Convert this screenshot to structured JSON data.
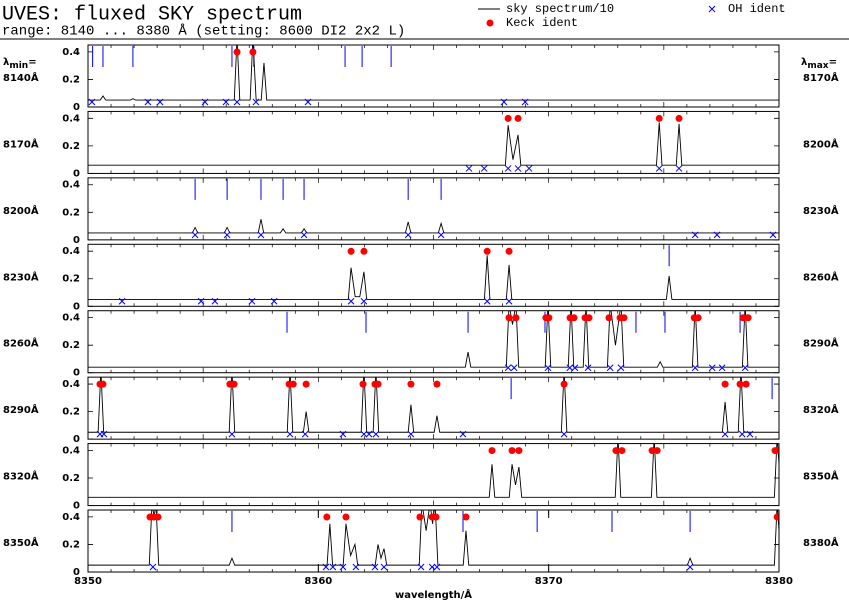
{
  "header": {
    "title": "UVES: fluxed SKY spectrum",
    "subtitle": "range: 8140 ... 8380 Å (setting: 8600 DI2 2x2 L)"
  },
  "legend": [
    {
      "name": "sky spectrum/10",
      "color": "#000000",
      "marker": "line"
    },
    {
      "name": "OH ident",
      "color": "#0000ff",
      "marker": "x"
    },
    {
      "name": "Keck ident",
      "color": "#ff0000",
      "marker": "dot"
    }
  ],
  "left_header": {
    "symbol": "λ",
    "sub": "min",
    "eq": "="
  },
  "right_header": {
    "symbol": "λ",
    "sub": "max",
    "eq": "="
  },
  "tick_color": "#0000ff",
  "chart_data": [
    {
      "type": "line",
      "min_label": "8140Å",
      "max_label": "8170Å",
      "xlim": [
        8140,
        8170
      ],
      "ylim": [
        0,
        0.45
      ],
      "yticks": [
        0,
        0.2,
        0.4
      ],
      "spectrum": {
        "x": [
          8140,
          8140.53,
          8140.65,
          8140.77,
          8141.83,
          8141.95,
          8142.07,
          8146.35,
          8146.47,
          8146.59,
          8147.04,
          8147.16,
          8147.3,
          8147.52,
          8147.64,
          8147.76,
          8170
        ],
        "values": [
          0.05,
          0.05,
          0.08,
          0.05,
          0.05,
          0.06,
          0.05,
          0.05,
          0.5,
          0.05,
          0.05,
          0.5,
          0.05,
          0.05,
          0.32,
          0.05,
          0.05
        ]
      },
      "oh_ident": [
        8140.17,
        8142.6,
        8143.13,
        8145.08,
        8145.99,
        8146.47,
        8147.29,
        8149.55,
        8158.06,
        8158.98
      ],
      "keck_ident": [
        8146.47,
        8147.16
      ],
      "line_ticks": [
        8140.2,
        8140.65,
        8141.95,
        8146.25,
        8147.2,
        8151.16,
        8151.9,
        8153.16
      ]
    },
    {
      "type": "line",
      "min_label": "8170Å",
      "max_label": "8200Å",
      "xlim": [
        8170,
        8200
      ],
      "ylim": [
        0,
        0.45
      ],
      "yticks": [
        0,
        0.2,
        0.4
      ],
      "spectrum": {
        "x": [
          8170,
          8188.12,
          8188.24,
          8188.45,
          8188.67,
          8188.79,
          8194.68,
          8194.8,
          8194.92,
          8195.54,
          8195.66,
          8195.78,
          8200
        ],
        "values": [
          0.06,
          0.06,
          0.35,
          0.1,
          0.28,
          0.06,
          0.06,
          0.37,
          0.06,
          0.06,
          0.36,
          0.06,
          0.06
        ]
      },
      "oh_ident": [
        8186.54,
        8187.2,
        8188.24,
        8188.67,
        8189.15,
        8194.8,
        8195.66
      ],
      "keck_ident": [
        8188.24,
        8188.67,
        8194.8,
        8195.66
      ],
      "line_ticks": []
    },
    {
      "type": "line",
      "min_label": "8200Å",
      "max_label": "8230Å",
      "xlim": [
        8200,
        8230
      ],
      "ylim": [
        0,
        0.45
      ],
      "yticks": [
        0,
        0.2,
        0.4
      ],
      "spectrum": {
        "x": [
          8200,
          8204.53,
          8204.65,
          8204.77,
          8205.92,
          8206.04,
          8206.16,
          8207.39,
          8207.51,
          8207.63,
          8208.35,
          8208.47,
          8208.59,
          8209.26,
          8209.38,
          8209.5,
          8213.78,
          8213.9,
          8214.02,
          8215.21,
          8215.33,
          8215.45,
          8230
        ],
        "values": [
          0.05,
          0.05,
          0.09,
          0.05,
          0.05,
          0.09,
          0.05,
          0.05,
          0.15,
          0.05,
          0.05,
          0.08,
          0.05,
          0.05,
          0.08,
          0.05,
          0.05,
          0.13,
          0.05,
          0.05,
          0.12,
          0.05,
          0.05
        ]
      },
      "oh_ident": [
        8204.65,
        8206.04,
        8207.51,
        8209.38,
        8213.9,
        8215.33,
        8226.36,
        8227.31,
        8229.74
      ],
      "keck_ident": [],
      "line_ticks": [
        8204.65,
        8206.04,
        8207.51,
        8208.47,
        8209.38,
        8213.9,
        8215.33
      ]
    },
    {
      "type": "line",
      "min_label": "8230Å",
      "max_label": "8260Å",
      "xlim": [
        8230,
        8260
      ],
      "ylim": [
        0,
        0.45
      ],
      "yticks": [
        0,
        0.2,
        0.4
      ],
      "spectrum": {
        "x": [
          8230,
          8241.3,
          8241.42,
          8241.6,
          8241.8,
          8241.98,
          8242.1,
          8247.21,
          8247.33,
          8247.45,
          8248.16,
          8248.28,
          8248.4,
          8255.11,
          8255.23,
          8255.35,
          8260
        ],
        "values": [
          0.05,
          0.05,
          0.28,
          0.07,
          0.07,
          0.25,
          0.05,
          0.05,
          0.37,
          0.05,
          0.05,
          0.3,
          0.05,
          0.05,
          0.22,
          0.05,
          0.05
        ]
      },
      "oh_ident": [
        8231.48,
        8234.91,
        8235.51,
        8237.12,
        8238.08,
        8241.42,
        8241.98,
        8247.33,
        8248.28
      ],
      "keck_ident": [
        8241.42,
        8241.98,
        8247.33,
        8248.28
      ],
      "line_ticks": [
        8255.23
      ]
    },
    {
      "type": "line",
      "min_label": "8260Å",
      "max_label": "8290Å",
      "xlim": [
        8260,
        8290
      ],
      "ylim": [
        0,
        0.45
      ],
      "yticks": [
        0,
        0.2,
        0.4
      ],
      "spectrum": {
        "x": [
          8260,
          8276.38,
          8276.5,
          8276.62,
          8278.16,
          8278.28,
          8278.43,
          8278.58,
          8278.7,
          8279.85,
          8279.97,
          8280.09,
          8280.85,
          8280.97,
          8281.09,
          8281.5,
          8281.62,
          8281.74,
          8282.55,
          8282.67,
          8282.9,
          8283.14,
          8283.26,
          8284.72,
          8284.84,
          8284.96,
          8286.24,
          8286.36,
          8286.48,
          8288.41,
          8288.53,
          8288.65,
          8290
        ],
        "values": [
          0.04,
          0.04,
          0.15,
          0.04,
          0.04,
          0.5,
          0.35,
          0.5,
          0.04,
          0.04,
          0.5,
          0.04,
          0.04,
          0.5,
          0.04,
          0.04,
          0.5,
          0.04,
          0.04,
          0.5,
          0.2,
          0.5,
          0.04,
          0.04,
          0.08,
          0.04,
          0.04,
          0.5,
          0.04,
          0.04,
          0.5,
          0.04,
          0.04
        ]
      },
      "oh_ident": [
        8278.24,
        8278.5,
        8279.97,
        8280.92,
        8281.14,
        8281.71,
        8282.67,
        8283.14,
        8286.36,
        8287.1,
        8287.53,
        8288.53
      ],
      "keck_ident": [
        8278.28,
        8278.58,
        8279.88,
        8280.01,
        8280.93,
        8281.1,
        8281.58,
        8281.75,
        8282.62,
        8283.1,
        8283.27,
        8286.32,
        8286.49,
        8288.44,
        8288.66
      ],
      "line_ticks": [
        8268.64,
        8272.07,
        8276.5,
        8279.84,
        8283.79,
        8285.05,
        8288.31
      ]
    },
    {
      "type": "line",
      "min_label": "8290Å",
      "max_label": "8320Å",
      "xlim": [
        8290,
        8320
      ],
      "ylim": [
        0,
        0.45
      ],
      "yticks": [
        0,
        0.2,
        0.4
      ],
      "spectrum": {
        "x": [
          8290,
          8290.44,
          8290.56,
          8290.68,
          8296.13,
          8296.25,
          8296.37,
          8298.65,
          8298.77,
          8298.89,
          8299.35,
          8299.47,
          8299.59,
          8301.86,
          8301.98,
          8302.1,
          8302.38,
          8302.5,
          8302.62,
          8303.9,
          8304.02,
          8304.14,
          8305.03,
          8305.15,
          8305.27,
          8310.55,
          8310.67,
          8310.79,
          8317.54,
          8317.66,
          8317.78,
          8318.23,
          8318.35,
          8318.47,
          8320
        ],
        "values": [
          0.05,
          0.05,
          0.5,
          0.05,
          0.05,
          0.5,
          0.05,
          0.05,
          0.5,
          0.05,
          0.05,
          0.2,
          0.05,
          0.05,
          0.5,
          0.05,
          0.05,
          0.5,
          0.05,
          0.05,
          0.25,
          0.05,
          0.05,
          0.17,
          0.05,
          0.05,
          0.5,
          0.05,
          0.05,
          0.27,
          0.05,
          0.05,
          0.5,
          0.05,
          0.05
        ]
      },
      "oh_ident": [
        8290.52,
        8290.69,
        8296.25,
        8298.77,
        8299.43,
        8301.07,
        8301.98,
        8302.2,
        8302.5,
        8304.02,
        8306.28,
        8310.67,
        8317.66,
        8318.4,
        8318.74
      ],
      "keck_ident": [
        8290.52,
        8290.65,
        8296.16,
        8296.34,
        8298.73,
        8298.91,
        8299.47,
        8301.94,
        8302.46,
        8302.59,
        8304.02,
        8305.15,
        8310.67,
        8317.66,
        8318.31,
        8318.57
      ],
      "line_ticks": [
        8308.37,
        8319.7
      ]
    },
    {
      "type": "line",
      "min_label": "8320Å",
      "max_label": "8350Å",
      "xlim": [
        8320,
        8350
      ],
      "ylim": [
        0,
        0.45
      ],
      "yticks": [
        0,
        0.2,
        0.4
      ],
      "spectrum": {
        "x": [
          8320,
          8337.42,
          8337.54,
          8337.66,
          8338.29,
          8338.41,
          8338.56,
          8338.71,
          8338.83,
          8342.89,
          8343.01,
          8343.13,
          8344.46,
          8344.58,
          8344.7,
          8349.8,
          8349.92,
          8350
        ],
        "values": [
          0.06,
          0.06,
          0.3,
          0.06,
          0.06,
          0.3,
          0.15,
          0.28,
          0.06,
          0.06,
          0.5,
          0.06,
          0.06,
          0.5,
          0.06,
          0.06,
          0.5,
          0.3
        ]
      },
      "oh_ident": [],
      "keck_ident": [
        8337.54,
        8338.41,
        8338.71,
        8342.92,
        8343.18,
        8344.49,
        8344.71,
        8349.83,
        8350
      ],
      "line_ticks": []
    },
    {
      "type": "line",
      "min_label": "8350Å",
      "max_label": "8380Å",
      "xlim": [
        8350,
        8380
      ],
      "ylim": [
        0,
        0.45
      ],
      "yticks": [
        0,
        0.2,
        0.4
      ],
      "xticks": [
        8350,
        8360,
        8370,
        8380
      ],
      "xlabel": "wavelength/Å",
      "spectrum": {
        "x": [
          8350,
          8352.66,
          8352.78,
          8352.87,
          8352.95,
          8353.07,
          8356.13,
          8356.25,
          8356.37,
          8360.38,
          8360.5,
          8360.62,
          8361.08,
          8361.2,
          8361.4,
          8361.59,
          8361.71,
          8362.47,
          8362.59,
          8362.72,
          8362.85,
          8362.97,
          8364.38,
          8364.5,
          8364.68,
          8364.85,
          8364.96,
          8365.07,
          8365.19,
          8366.29,
          8366.41,
          8366.53,
          8376.02,
          8376.14,
          8376.26,
          8379.8,
          8379.92,
          8380
        ],
        "values": [
          0.05,
          0.05,
          0.5,
          0.4,
          0.5,
          0.05,
          0.05,
          0.1,
          0.05,
          0.05,
          0.35,
          0.05,
          0.05,
          0.35,
          0.12,
          0.2,
          0.05,
          0.05,
          0.2,
          0.1,
          0.17,
          0.05,
          0.05,
          0.5,
          0.3,
          0.5,
          0.35,
          0.5,
          0.05,
          0.05,
          0.3,
          0.05,
          0.05,
          0.1,
          0.05,
          0.05,
          0.5,
          0.3
        ]
      },
      "oh_ident": [
        8352.82,
        8360.33,
        8360.63,
        8361.07,
        8361.63,
        8362.46,
        8362.85,
        8364.46,
        8364.94,
        8365.15,
        8376.14
      ],
      "keck_ident": [
        8352.69,
        8352.86,
        8353.04,
        8360.37,
        8361.2,
        8364.41,
        8364.94,
        8365.11,
        8366.41,
        8379.92
      ],
      "line_ticks": [
        8356.25,
        8366.28,
        8369.5,
        8372.75,
        8376.14
      ]
    }
  ]
}
